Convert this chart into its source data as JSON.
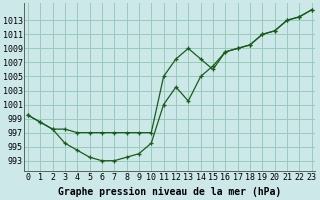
{
  "xlabel": "Graphe pression niveau de la mer (hPa)",
  "background_color": "#cce8e8",
  "grid_color": "#99ccbb",
  "line_color": "#1a5c1a",
  "xlim": [
    -0.3,
    23.3
  ],
  "ylim": [
    991.5,
    1015.5
  ],
  "yticks": [
    993,
    995,
    997,
    999,
    1001,
    1003,
    1005,
    1007,
    1009,
    1011,
    1013
  ],
  "xticks": [
    0,
    1,
    2,
    3,
    4,
    5,
    6,
    7,
    8,
    9,
    10,
    11,
    12,
    13,
    14,
    15,
    16,
    17,
    18,
    19,
    20,
    21,
    22,
    23
  ],
  "series1_x": [
    0,
    1,
    2,
    3,
    4,
    5,
    6,
    7,
    8,
    9,
    10,
    11,
    12,
    13,
    14,
    15,
    16,
    17,
    18,
    19,
    20,
    21,
    22,
    23
  ],
  "series1_y": [
    999.5,
    998.5,
    997.5,
    995.5,
    994.5,
    993.5,
    993.0,
    993.0,
    993.5,
    994.0,
    995.5,
    1001.0,
    1003.5,
    1001.5,
    1005.0,
    1006.5,
    1008.5,
    1009.0,
    1009.5,
    1011.0,
    1011.5,
    1013.0,
    1013.5,
    1014.5
  ],
  "series2_x": [
    0,
    1,
    2,
    3,
    4,
    5,
    6,
    7,
    8,
    9,
    10,
    11,
    12,
    13,
    14,
    15,
    16,
    17,
    18,
    19,
    20,
    21,
    22,
    23
  ],
  "series2_y": [
    999.5,
    998.5,
    997.5,
    997.5,
    997.0,
    997.0,
    997.0,
    997.0,
    997.0,
    997.0,
    997.0,
    1005.0,
    1007.5,
    1009.0,
    1007.5,
    1006.0,
    1008.5,
    1009.0,
    1009.5,
    1011.0,
    1011.5,
    1013.0,
    1013.5,
    1014.5
  ],
  "xlabel_fontsize": 7,
  "tick_fontsize": 6
}
